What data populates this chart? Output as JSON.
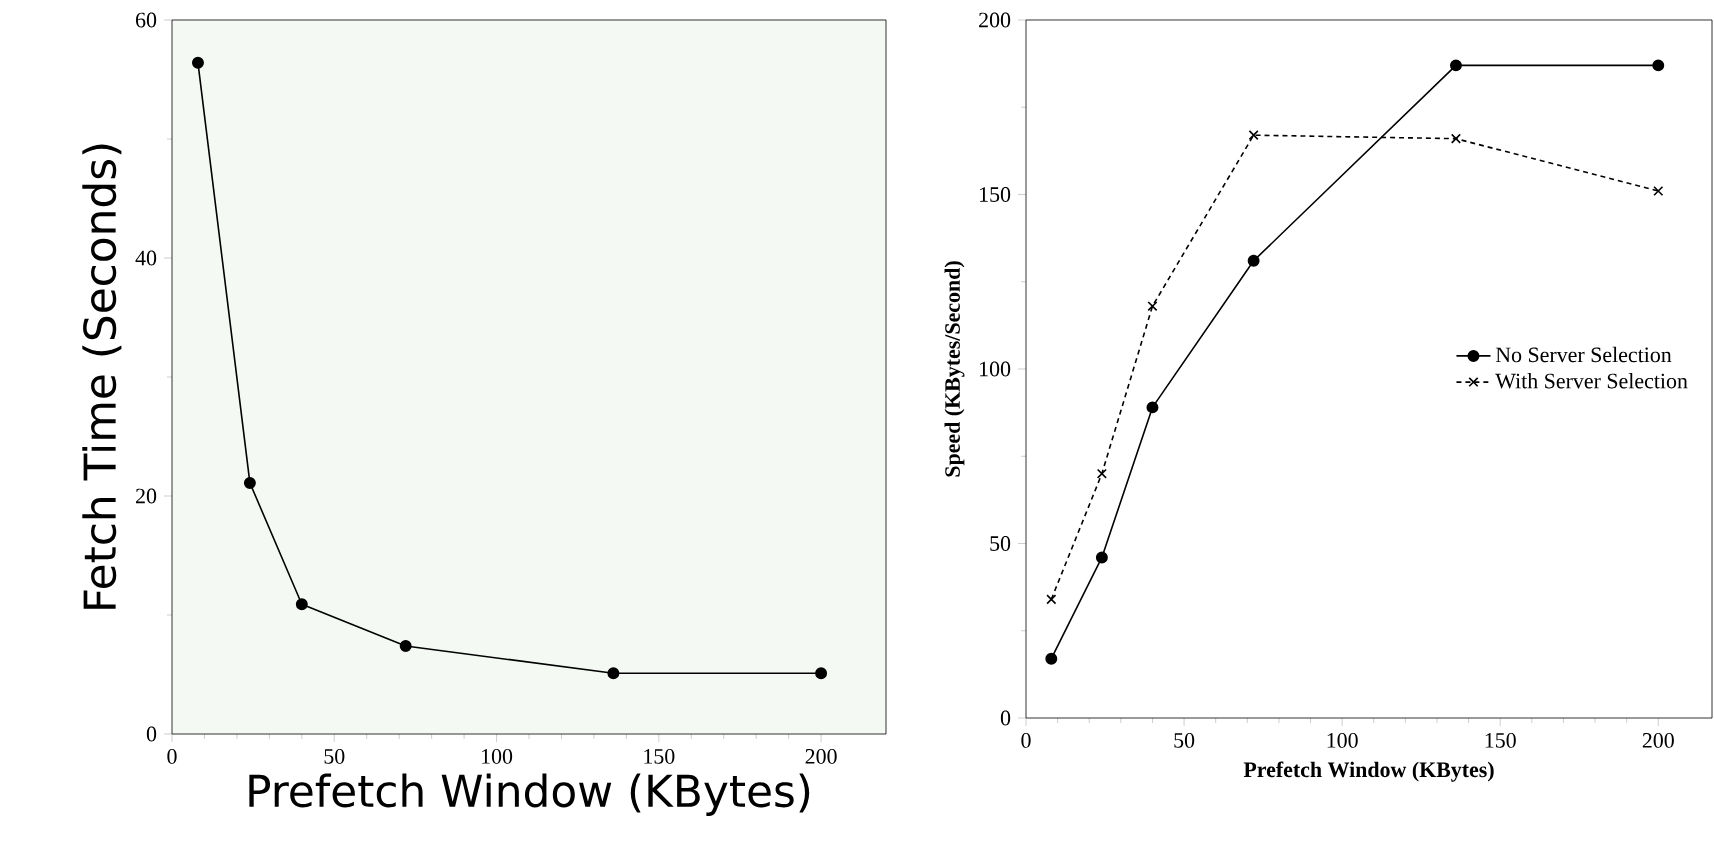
{
  "chart_data": [
    {
      "type": "line",
      "xlabel": "Prefetch Window (KBytes)",
      "ylabel": "Fetch Time (Seconds)",
      "x": [
        8,
        24,
        40,
        72,
        136,
        200
      ],
      "values": [
        56.4,
        21.1,
        10.9,
        7.4,
        5.1,
        5.1
      ],
      "color": "#000000",
      "marker": "circle",
      "xlim": [
        0,
        220
      ],
      "ylim": [
        0,
        60
      ],
      "xticks": [
        0,
        50,
        100,
        150,
        200
      ],
      "yticks": [
        0,
        20,
        40,
        60
      ]
    },
    {
      "type": "line",
      "xlabel": "Prefetch Window (KBytes)",
      "ylabel": "Speed (KBytes/Second)",
      "x": [
        8,
        24,
        40,
        72,
        136,
        200
      ],
      "legend": "right",
      "xlim": [
        0,
        217
      ],
      "ylim": [
        0,
        200
      ],
      "xticks": [
        0,
        50,
        100,
        150,
        200
      ],
      "yticks": [
        0,
        50,
        100,
        150,
        200
      ],
      "series": [
        {
          "name": "No Server Selection",
          "color": "#000000",
          "marker": "circle",
          "line_style": "solid",
          "values": [
            17,
            46,
            89,
            131,
            187,
            187
          ]
        },
        {
          "name": "With Server Selection",
          "color": "#000000",
          "marker": "cross",
          "line_style": "dashed",
          "values": [
            34,
            70,
            118,
            167,
            166,
            151
          ]
        }
      ]
    }
  ]
}
